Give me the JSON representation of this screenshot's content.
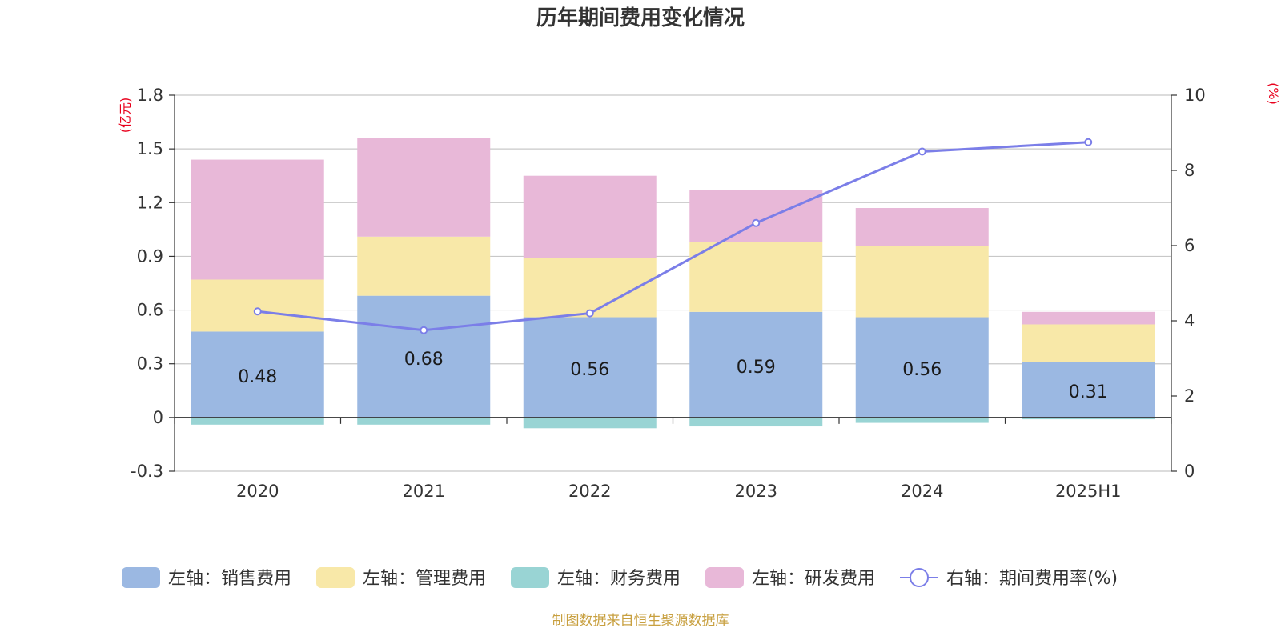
{
  "chart_data": {
    "type": "bar",
    "stacked": true,
    "title": "历年期间费用变化情况",
    "categories": [
      "2020",
      "2021",
      "2022",
      "2023",
      "2024",
      "2025H1"
    ],
    "left_axis": {
      "unit_label": "(亿元)",
      "ylim": [
        -0.3,
        1.8
      ],
      "ticks": [
        "1.8",
        "1.5",
        "1.2",
        "0.9",
        "0.6",
        "0.3",
        "0",
        "-0.3"
      ],
      "tick_values": [
        1.8,
        1.5,
        1.2,
        0.9,
        0.6,
        0.3,
        0,
        -0.3
      ]
    },
    "right_axis": {
      "unit_label": "(%)",
      "ylim": [
        0,
        10
      ],
      "ticks": [
        "10",
        "8",
        "6",
        "4",
        "2",
        "0"
      ],
      "tick_values": [
        10,
        8,
        6,
        4,
        2,
        0
      ]
    },
    "series": [
      {
        "name": "左轴：销售费用",
        "axis": "left",
        "kind": "bar",
        "color": "#9bb8e2",
        "values": [
          0.48,
          0.68,
          0.56,
          0.59,
          0.56,
          0.31
        ],
        "labels": [
          "0.48",
          "0.68",
          "0.56",
          "0.59",
          "0.56",
          "0.31"
        ]
      },
      {
        "name": "左轴：管理费用",
        "axis": "left",
        "kind": "bar",
        "color": "#f8e8a8",
        "values": [
          0.29,
          0.33,
          0.33,
          0.39,
          0.4,
          0.21
        ]
      },
      {
        "name": "左轴：财务费用",
        "axis": "left",
        "kind": "bar",
        "color": "#99d4d4",
        "values": [
          -0.04,
          -0.04,
          -0.06,
          -0.05,
          -0.03,
          -0.01
        ]
      },
      {
        "name": "左轴：研发费用",
        "axis": "left",
        "kind": "bar",
        "color": "#e8b8d8",
        "values": [
          0.67,
          0.55,
          0.46,
          0.29,
          0.21,
          0.07
        ]
      },
      {
        "name": "右轴：期间费用率(%)",
        "axis": "right",
        "kind": "line",
        "color": "#7b7ee8",
        "values": [
          4.25,
          3.75,
          4.2,
          6.6,
          8.5,
          8.75
        ]
      }
    ],
    "grid": true,
    "legend_position": "bottom",
    "axis_unit_color": "#e8001c",
    "source": "制图数据来自恒生聚源数据库",
    "source_color": "#c8a040"
  }
}
